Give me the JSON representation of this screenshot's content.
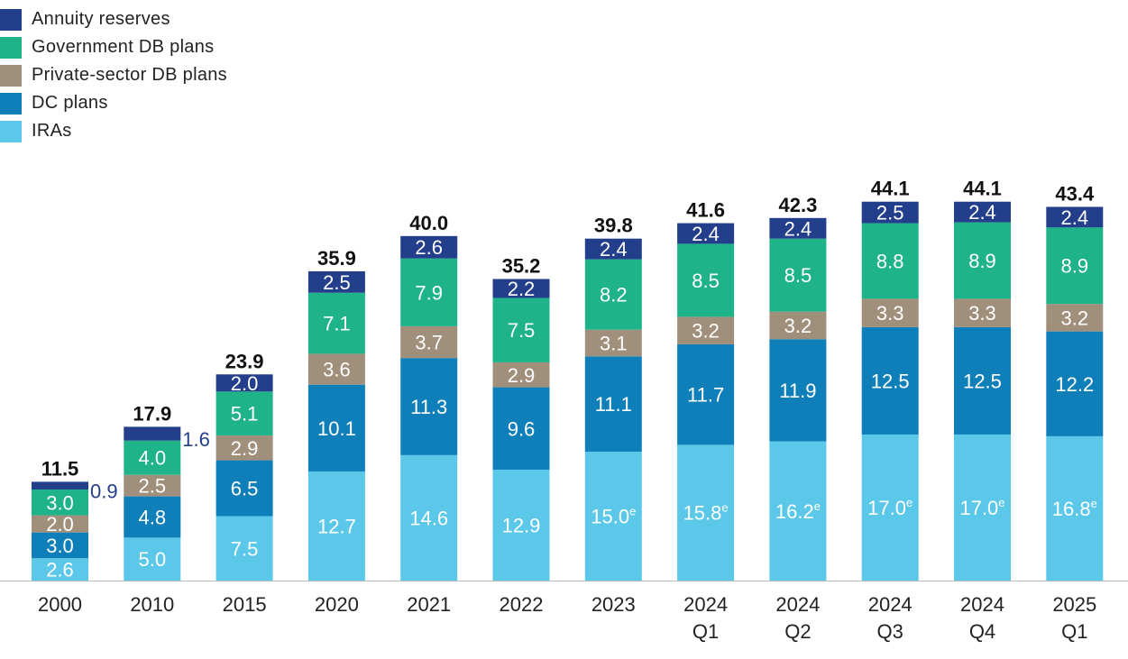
{
  "chart_data": {
    "type": "bar",
    "stacked": true,
    "categories": [
      "2000",
      "2010",
      "2015",
      "2020",
      "2021",
      "2022",
      "2023",
      "2024 Q1",
      "2024 Q2",
      "2024 Q3",
      "2024 Q4",
      "2025 Q1"
    ],
    "category_lines": [
      [
        "2000"
      ],
      [
        "2010"
      ],
      [
        "2015"
      ],
      [
        "2020"
      ],
      [
        "2021"
      ],
      [
        "2022"
      ],
      [
        "2023"
      ],
      [
        "2024",
        "Q1"
      ],
      [
        "2024",
        "Q2"
      ],
      [
        "2024",
        "Q3"
      ],
      [
        "2024",
        "Q4"
      ],
      [
        "2025",
        "Q1"
      ]
    ],
    "totals": [
      11.5,
      17.9,
      23.9,
      35.9,
      40.0,
      35.2,
      39.8,
      41.6,
      42.3,
      44.1,
      44.1,
      43.4
    ],
    "series": [
      {
        "name": "IRAs",
        "color": "#5bc8ea",
        "values": [
          2.6,
          5.0,
          7.5,
          12.7,
          14.6,
          12.9,
          15.0,
          15.8,
          16.2,
          17.0,
          17.0,
          16.8
        ],
        "superscripts": [
          "",
          "",
          "",
          "",
          "",
          "",
          "e",
          "e",
          "e",
          "e",
          "e",
          "e"
        ]
      },
      {
        "name": "DC plans",
        "color": "#0f7fba",
        "values": [
          3.0,
          4.8,
          6.5,
          10.1,
          11.3,
          9.6,
          11.1,
          11.7,
          11.9,
          12.5,
          12.5,
          12.2
        ]
      },
      {
        "name": "Private-sector DB plans",
        "color": "#a08f7b",
        "values": [
          2.0,
          2.5,
          2.9,
          3.6,
          3.7,
          2.9,
          3.1,
          3.2,
          3.2,
          3.3,
          3.3,
          3.2
        ]
      },
      {
        "name": "Government DB plans",
        "color": "#1fb38a",
        "values": [
          3.0,
          4.0,
          5.1,
          7.1,
          7.9,
          7.5,
          8.2,
          8.5,
          8.5,
          8.8,
          8.9,
          8.9
        ]
      },
      {
        "name": "Annuity reserves",
        "color": "#233f8c",
        "values": [
          0.9,
          1.6,
          2.0,
          2.5,
          2.6,
          2.2,
          2.4,
          2.4,
          2.4,
          2.5,
          2.4,
          2.4
        ]
      }
    ],
    "legend_order": [
      4,
      3,
      2,
      1,
      0
    ],
    "legend_position": "top-left",
    "grid": false,
    "ylim": [
      0,
      44.1
    ],
    "title": "",
    "xlabel": "",
    "ylabel": ""
  }
}
